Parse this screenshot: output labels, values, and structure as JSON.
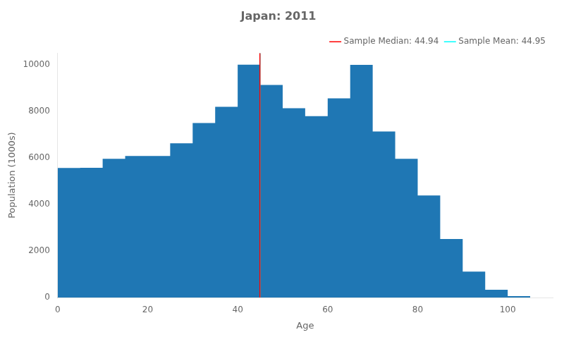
{
  "chart_data": {
    "type": "histogram",
    "title": "Japan: 2011",
    "xlabel": "Age",
    "ylabel": "Population (1000s)",
    "bins": [
      0,
      5,
      10,
      15,
      20,
      25,
      30,
      35,
      40,
      45,
      50,
      55,
      60,
      65,
      70,
      75,
      80,
      85,
      90,
      95,
      100,
      105
    ],
    "values": [
      5560,
      5570,
      5960,
      6080,
      6080,
      6620,
      7490,
      8190,
      10000,
      9130,
      8130,
      7790,
      8550,
      9990,
      7130,
      5960,
      4380,
      2510,
      1110,
      330,
      60
    ],
    "color": "#1f77b4",
    "series": [
      {
        "name": "Sample Median: 44.94",
        "type": "vline",
        "x": 44.94,
        "color": "red"
      },
      {
        "name": "Sample Mean: 44.95",
        "type": "vline",
        "x": 44.95,
        "color": "cyan"
      }
    ],
    "xlim": [
      0,
      110
    ],
    "ylim": [
      0,
      10500
    ],
    "xticks": [
      0,
      20,
      40,
      60,
      80,
      100
    ],
    "yticks": [
      0,
      2000,
      4000,
      6000,
      8000,
      10000
    ],
    "grid": false,
    "legend": "upper right"
  }
}
